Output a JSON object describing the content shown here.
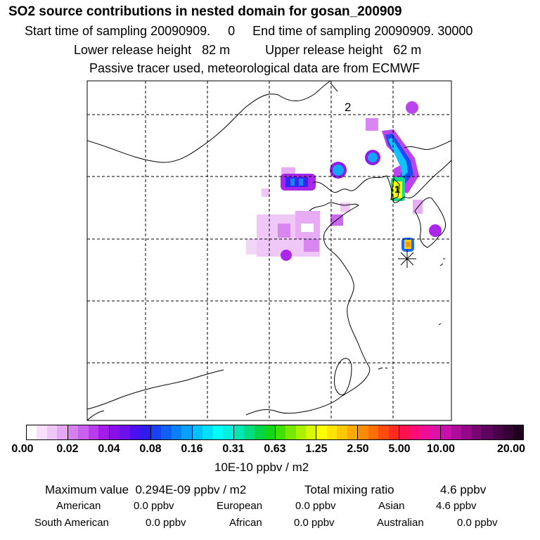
{
  "header": {
    "title": "SO2 source contributions in nested domain for gosan_200909",
    "line1": "Start time of sampling 20090909.     0     End time of sampling 20090909. 30000",
    "line2": "Lower release height   82 m          Upper release height   62 m",
    "line3": "Passive tracer used, meteorological data are from ECMWF"
  },
  "map": {
    "marker_label_2": "2",
    "marker_label_1": "1"
  },
  "colorbar": {
    "ticks": [
      "0.00",
      "0.02",
      "0.04",
      "0.08",
      "0.16",
      "0.31",
      "0.63",
      "1.25",
      "2.50",
      "5.00",
      "10.00",
      "20.00"
    ],
    "segments": [
      [
        "#ffffff",
        "#f7e0fb",
        "#efc6f7",
        "#e6a8f3"
      ],
      [
        "#d680f0",
        "#c860ee",
        "#b83cec",
        "#a41ce9"
      ],
      [
        "#8a10ea",
        "#6c10ec",
        "#4c10ee",
        "#2c1cf0"
      ],
      [
        "#1840f4",
        "#1060f6",
        "#0c80f8",
        "#08a0fa"
      ],
      [
        "#04c0fc",
        "#00e0fe",
        "#00ffff",
        "#00f0e0"
      ],
      [
        "#00e6b4",
        "#00dc80",
        "#00d24c",
        "#10d818"
      ],
      [
        "#40e000",
        "#78e800",
        "#aaf000",
        "#d8f800"
      ],
      [
        "#ffff00",
        "#ffe400",
        "#ffc800",
        "#ffaa00"
      ],
      [
        "#ff8c00",
        "#ff6e00",
        "#ff4a10",
        "#ff2a20"
      ],
      [
        "#ff1050",
        "#ff0c78",
        "#f00c96",
        "#e010a8"
      ],
      [
        "#c810a8",
        "#b00c9a",
        "#940888",
        "#780474"
      ],
      [
        "#5c0460",
        "#480348",
        "#340234",
        "#200120"
      ]
    ],
    "unit": "10E-10 ppbv / m2"
  },
  "stats": {
    "max_label": "Maximum value  0.294E-09 ppbv / m2",
    "total_label": "Total mixing ratio",
    "total_value": "4.6 ppbv",
    "american_label": "American",
    "american_value": "0.0 ppbv",
    "european_label": "European",
    "european_value": "0.0 ppbv",
    "asian_label": "Asian",
    "asian_value": "4.6 ppbv",
    "south_american_label": "South American",
    "south_american_value": "0.0 ppbv",
    "african_label": "African",
    "african_value": "0.0 ppbv",
    "australian_label": "Australian",
    "australian_value": "0.0 ppbv"
  }
}
